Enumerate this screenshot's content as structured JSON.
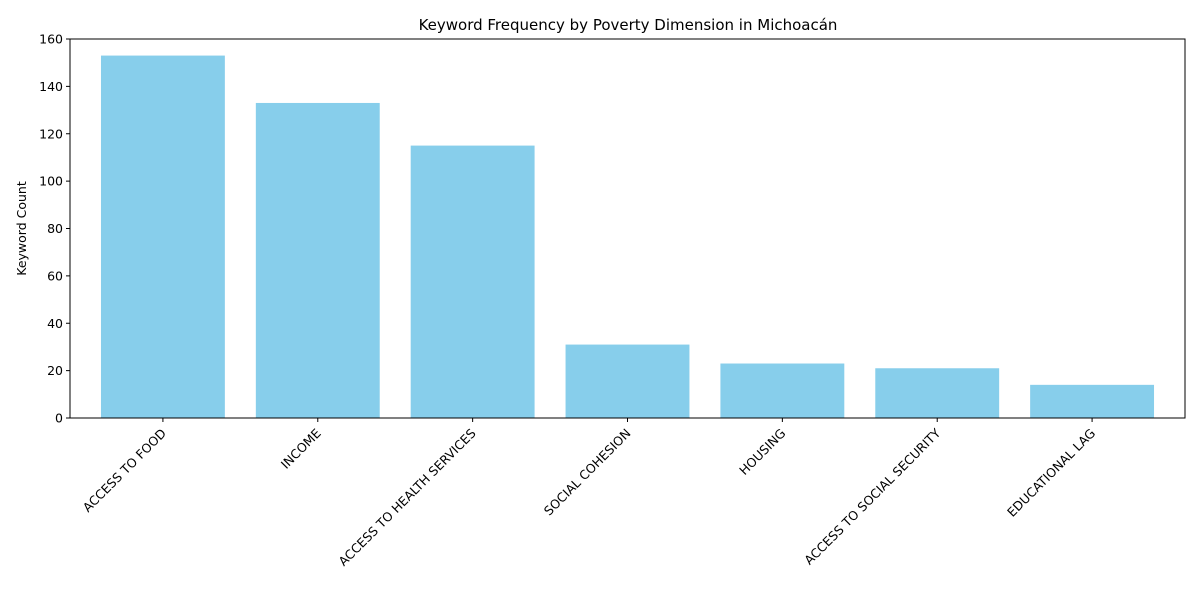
{
  "chart_data": {
    "type": "bar",
    "title": "Keyword Frequency by Poverty Dimension in Michoacán",
    "xlabel": "",
    "ylabel": "Keyword Count",
    "categories": [
      "ACCESS TO FOOD",
      "INCOME",
      "ACCESS TO HEALTH SERVICES",
      "SOCIAL COHESION",
      "HOUSING",
      "ACCESS TO SOCIAL SECURITY",
      "EDUCATIONAL LAG"
    ],
    "values": [
      153,
      133,
      115,
      31,
      23,
      21,
      14
    ],
    "ylim": [
      0,
      160
    ],
    "yticks": [
      0,
      20,
      40,
      60,
      80,
      100,
      120,
      140,
      160
    ],
    "bar_color": "#87CEEB",
    "grid": false,
    "legend": "none"
  }
}
